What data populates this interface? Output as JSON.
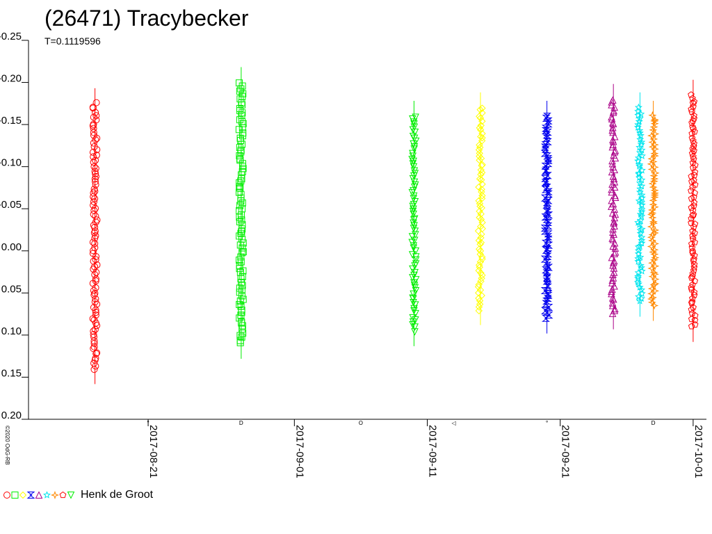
{
  "chart_data": {
    "type": "scatter",
    "title": "(26471) Tracybecker",
    "subtitle": "T=0.1119596",
    "copyright": "©2020 OdG-RB",
    "observer": "Henk de Groot",
    "y_inverted": true,
    "ylim": [
      -0.25,
      0.2
    ],
    "y_ticks": [
      "-0.25",
      "-0.20",
      "-0.15",
      "-0.10",
      "-0.05",
      "0.00",
      "0.05",
      "0.10",
      "0.15",
      "0.20"
    ],
    "x_range": [
      "2017-08-12",
      "2017-10-02"
    ],
    "x_ticks": [
      "2017-08-21",
      "2017-09-01",
      "2017-09-11",
      "2017-09-21",
      "2017-10-01"
    ],
    "moon_phases": [
      {
        "date": "2017-08-21",
        "symbol": "°"
      },
      {
        "date": "2017-08-28",
        "symbol": "D"
      },
      {
        "date": "2017-09-06",
        "symbol": "O"
      },
      {
        "date": "2017-09-13",
        "symbol": "◁"
      },
      {
        "date": "2017-09-20",
        "symbol": "°"
      },
      {
        "date": "2017-09-28",
        "symbol": "D"
      }
    ],
    "series": [
      {
        "date": "2017-08-17",
        "symbol": "circle",
        "color": "#ff0000",
        "y_min": -0.175,
        "y_max": 0.14
      },
      {
        "date": "2017-08-28",
        "symbol": "square",
        "color": "#00ee00",
        "y_min": -0.2,
        "y_max": 0.11
      },
      {
        "date": "2017-09-10",
        "symbol": "triangle-down",
        "color": "#00ee00",
        "y_min": -0.16,
        "y_max": 0.095
      },
      {
        "date": "2017-09-15",
        "symbol": "diamond",
        "color": "#ffff00",
        "y_min": -0.17,
        "y_max": 0.07
      },
      {
        "date": "2017-09-20",
        "symbol": "bowtie",
        "color": "#0000ee",
        "y_min": -0.16,
        "y_max": 0.08
      },
      {
        "date": "2017-09-25",
        "symbol": "triangle-up",
        "color": "#aa0088",
        "y_min": -0.18,
        "y_max": 0.075
      },
      {
        "date": "2017-09-27",
        "symbol": "star",
        "color": "#00e5ee",
        "y_min": -0.17,
        "y_max": 0.06
      },
      {
        "date": "2017-09-28",
        "symbol": "plus-diamond",
        "color": "#ff8800",
        "y_min": -0.16,
        "y_max": 0.065
      },
      {
        "date": "2017-10-01",
        "symbol": "pentagon",
        "color": "#ff0000",
        "y_min": -0.185,
        "y_max": 0.09
      }
    ],
    "legend_symbols": [
      {
        "symbol": "circle",
        "color": "#ff0000"
      },
      {
        "symbol": "square",
        "color": "#00ee00"
      },
      {
        "symbol": "diamond",
        "color": "#ffff00"
      },
      {
        "symbol": "bowtie",
        "color": "#0000ee"
      },
      {
        "symbol": "triangle-up",
        "color": "#aa0088"
      },
      {
        "symbol": "star",
        "color": "#00e5ee"
      },
      {
        "symbol": "plus-diamond",
        "color": "#ff8800"
      },
      {
        "symbol": "pentagon",
        "color": "#ff0000"
      },
      {
        "symbol": "triangle-down",
        "color": "#00ee00"
      }
    ]
  }
}
